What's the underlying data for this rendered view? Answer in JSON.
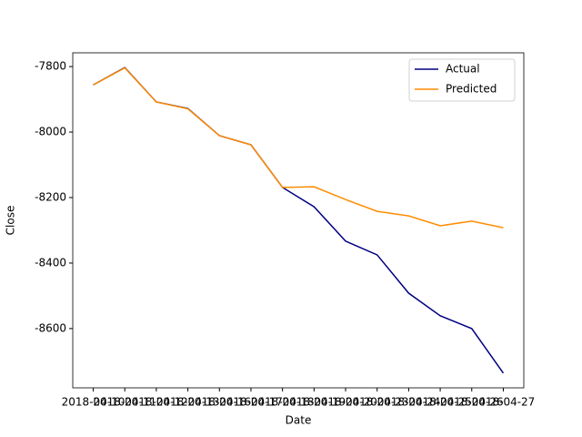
{
  "chart_data": {
    "type": "line",
    "x_label": "Date",
    "y_label": "Close",
    "categories": [
      "2018-04-10",
      "2018-04-11",
      "2018-04-12",
      "2018-04-13",
      "2018-04-16",
      "2018-04-17",
      "2018-04-18",
      "2018-04-19",
      "2018-04-20",
      "2018-04-23",
      "2018-04-24",
      "2018-04-25",
      "2018-04-26",
      "2018-04-27"
    ],
    "series": [
      {
        "name": "Actual",
        "color": "#000080",
        "values": [
          -7856,
          -7803,
          -7908,
          -7928,
          -8011,
          -8039,
          -8169,
          -8228,
          -8333,
          -8375,
          -8492,
          -8561,
          -8600,
          -8736
        ]
      },
      {
        "name": "Predicted",
        "color": "#ff8c00",
        "values": [
          -7856,
          -7804,
          -7908,
          -7929,
          -8011,
          -8039,
          -8169,
          -8167,
          -8206,
          -8242,
          -8256,
          -8286,
          -8272,
          -8292
        ]
      }
    ],
    "ylim": [
      -8781,
      -7758
    ],
    "yticks": [
      -8600,
      -8400,
      -8200,
      -8000,
      -7800
    ],
    "legend": "upper right"
  }
}
